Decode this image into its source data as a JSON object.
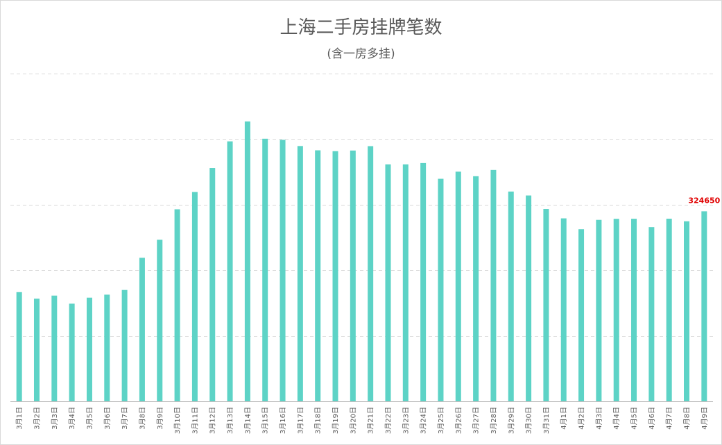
{
  "chart_data": {
    "type": "bar",
    "title": "上海二手房挂牌笔数",
    "subtitle": "(含一房多挂)",
    "xlabel": "",
    "ylabel": "",
    "categories": [
      "3月1日",
      "3月2日",
      "3月3日",
      "3月4日",
      "3月5日",
      "3月6日",
      "3月7日",
      "3月8日",
      "3月9日",
      "3月10日",
      "3月11日",
      "3月12日",
      "3月13日",
      "3月14日",
      "3月15日",
      "3月16日",
      "3月17日",
      "3月18日",
      "3月19日",
      "3月20日",
      "3月21日",
      "3月22日",
      "3月23日",
      "3月24日",
      "3月25日",
      "3月26日",
      "3月27日",
      "3月28日",
      "3月29日",
      "3月30日",
      "3月31日",
      "4月1日",
      "4月2日",
      "4月3日",
      "4月4日",
      "4月5日",
      "4月6日",
      "4月7日",
      "4月8日",
      "4月9日"
    ],
    "values": [
      186500,
      175300,
      180600,
      166800,
      177100,
      182200,
      190200,
      245200,
      276000,
      328100,
      357600,
      398600,
      444200,
      478200,
      448700,
      446800,
      436200,
      428900,
      427400,
      428500,
      436000,
      404900,
      404900,
      407100,
      380200,
      392400,
      384600,
      395300,
      358400,
      351700,
      328600,
      312600,
      294000,
      310000,
      311800,
      311900,
      297600,
      312000,
      307600,
      324650
    ],
    "ylim": [
      0,
      560000
    ],
    "y_gridlines": [
      0,
      112000,
      224000,
      336000,
      448000,
      560000
    ],
    "grid": true,
    "legend": "none",
    "bar_color": "#5dd3c6",
    "annotations": [
      {
        "index": 39,
        "text": "324650",
        "color": "#e00000"
      }
    ]
  }
}
